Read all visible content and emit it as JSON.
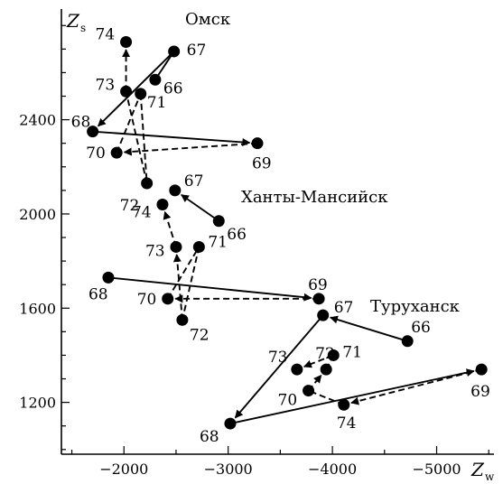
{
  "chart_data": {
    "type": "scatter",
    "x_axis": {
      "symbol": "Z",
      "subscript": "w",
      "range": [
        -1400,
        -5550
      ],
      "ticks": [
        -2000,
        -3000,
        -4000,
        -5000
      ],
      "tick_labels": [
        "−2000",
        "−3000",
        "−4000",
        "−5000"
      ]
    },
    "y_axis": {
      "symbol": "Z",
      "subscript": "s",
      "range": [
        980,
        2870
      ],
      "ticks": [
        1200,
        1600,
        2000,
        2400
      ],
      "tick_labels": [
        "1200",
        "1600",
        "2000",
        "2400"
      ]
    },
    "legend": "none",
    "series": [
      {
        "name": "Омск",
        "points": [
          {
            "label": "66",
            "x": -2300,
            "y": 2570
          },
          {
            "label": "67",
            "x": -2480,
            "y": 2690
          },
          {
            "label": "68",
            "x": -1700,
            "y": 2350
          },
          {
            "label": "69",
            "x": -3280,
            "y": 2300
          },
          {
            "label": "70",
            "x": -1930,
            "y": 2260
          },
          {
            "label": "71",
            "x": -2160,
            "y": 2510
          },
          {
            "label": "72",
            "x": -2220,
            "y": 2130
          },
          {
            "label": "73",
            "x": -2020,
            "y": 2520
          },
          {
            "label": "74",
            "x": -2020,
            "y": 2730
          }
        ],
        "segments": [
          {
            "from": "66",
            "to": "67",
            "style": "solid"
          },
          {
            "from": "67",
            "to": "68",
            "style": "solid",
            "arrow": true
          },
          {
            "from": "68",
            "to": "69",
            "style": "solid",
            "arrow": true
          },
          {
            "from": "69",
            "to": "70",
            "style": "dashed",
            "arrow": true
          },
          {
            "from": "70",
            "to": "71",
            "style": "dashed"
          },
          {
            "from": "71",
            "to": "72",
            "style": "dashed"
          },
          {
            "from": "72",
            "to": "73",
            "style": "dashed"
          },
          {
            "from": "73",
            "to": "74",
            "style": "dashed",
            "arrow": true
          }
        ]
      },
      {
        "name": "Ханты-Мансийск",
        "points": [
          {
            "label": "66",
            "x": -2910,
            "y": 1970
          },
          {
            "label": "67",
            "x": -2490,
            "y": 2100
          },
          {
            "label": "68",
            "x": -1850,
            "y": 1730
          },
          {
            "label": "69",
            "x": -3870,
            "y": 1640
          },
          {
            "label": "70",
            "x": -2420,
            "y": 1640
          },
          {
            "label": "71",
            "x": -2720,
            "y": 1860
          },
          {
            "label": "72",
            "x": -2560,
            "y": 1550
          },
          {
            "label": "73",
            "x": -2500,
            "y": 1860
          },
          {
            "label": "74",
            "x": -2370,
            "y": 2040
          }
        ],
        "segments": [
          {
            "from": "66",
            "to": "67",
            "style": "solid",
            "arrow": true
          },
          {
            "from": "68",
            "to": "69",
            "style": "solid",
            "arrow": true
          },
          {
            "from": "69",
            "to": "70",
            "style": "dashed",
            "arrow": true
          },
          {
            "from": "70",
            "to": "71",
            "style": "dashed"
          },
          {
            "from": "71",
            "to": "72",
            "style": "dashed"
          },
          {
            "from": "72",
            "to": "73",
            "style": "dashed",
            "arrow": true
          },
          {
            "from": "73",
            "to": "74",
            "style": "dashed",
            "arrow": true
          }
        ]
      },
      {
        "name": "Туруханск",
        "points": [
          {
            "label": "66",
            "x": -4720,
            "y": 1460
          },
          {
            "label": "67",
            "x": -3910,
            "y": 1570
          },
          {
            "label": "68",
            "x": -3020,
            "y": 1110
          },
          {
            "label": "69",
            "x": -5430,
            "y": 1340
          },
          {
            "label": "70",
            "x": -3770,
            "y": 1250
          },
          {
            "label": "71",
            "x": -4010,
            "y": 1400
          },
          {
            "label": "72",
            "x": -3940,
            "y": 1340
          },
          {
            "label": "73",
            "x": -3660,
            "y": 1340
          },
          {
            "label": "74",
            "x": -4110,
            "y": 1190
          }
        ],
        "segments": [
          {
            "from": "66",
            "to": "67",
            "style": "solid",
            "arrow": true
          },
          {
            "from": "67",
            "to": "68",
            "style": "solid",
            "arrow": true
          },
          {
            "from": "68",
            "to": "69",
            "style": "solid",
            "arrow": true
          },
          {
            "from": "69",
            "to": "74",
            "style": "dashed",
            "arrow": true
          },
          {
            "from": "74",
            "to": "70",
            "style": "dashed"
          },
          {
            "from": "70",
            "to": "72",
            "style": "dashed",
            "arrow": true
          },
          {
            "from": "72",
            "to": "71",
            "style": "dashed"
          },
          {
            "from": "71",
            "to": "73",
            "style": "dashed",
            "arrow": true
          }
        ]
      }
    ]
  }
}
